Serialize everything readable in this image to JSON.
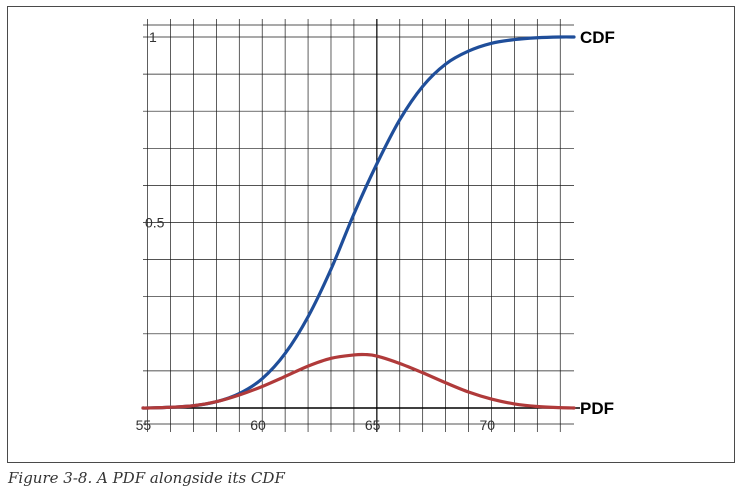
{
  "caption": "Figure 3-8. A PDF alongside its CDF",
  "chart_data": {
    "type": "line",
    "title": "",
    "xlabel": "",
    "ylabel": "",
    "xlim": [
      54.8,
      73.6
    ],
    "ylim": [
      0,
      1.0
    ],
    "grid": true,
    "xticks": [
      55,
      60,
      65,
      70
    ],
    "xtick_labels": [
      "55",
      "60",
      "65",
      "70"
    ],
    "yticks": [
      0.5,
      1
    ],
    "ytick_labels": [
      "0.5",
      "1"
    ],
    "series": [
      {
        "name": "CDF",
        "color": "#1f4e9a",
        "x": [
          54.8,
          55,
          56,
          57,
          58,
          59,
          60,
          61,
          62,
          63,
          64,
          65,
          66,
          67,
          68,
          69,
          70,
          71,
          72,
          73,
          73.6
        ],
        "y": [
          0.0,
          0.0,
          0.002,
          0.006,
          0.017,
          0.039,
          0.079,
          0.147,
          0.246,
          0.374,
          0.523,
          0.658,
          0.777,
          0.867,
          0.927,
          0.962,
          0.983,
          0.993,
          0.998,
          1.0,
          1.0
        ]
      },
      {
        "name": "PDF",
        "color": "#b03a3a",
        "x": [
          54.8,
          55,
          56,
          57,
          58,
          59,
          60,
          61,
          62,
          63,
          64,
          64.5,
          65,
          66,
          67,
          68,
          69,
          70,
          71,
          72,
          73,
          73.6
        ],
        "y": [
          0.0,
          0.0,
          0.002,
          0.006,
          0.017,
          0.035,
          0.058,
          0.085,
          0.113,
          0.134,
          0.143,
          0.144,
          0.14,
          0.12,
          0.095,
          0.068,
          0.043,
          0.024,
          0.011,
          0.004,
          0.001,
          0.0
        ]
      }
    ]
  }
}
